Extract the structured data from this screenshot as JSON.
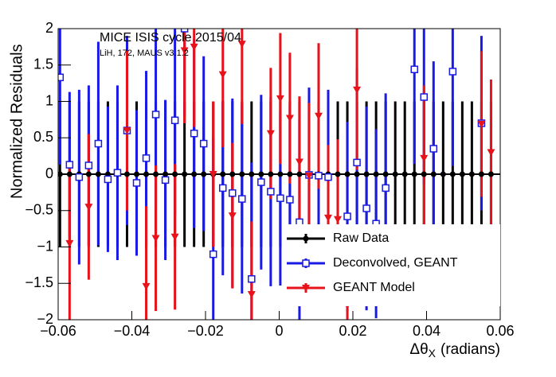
{
  "chart_data": {
    "type": "errorbar",
    "title": "MICE ISIS cycle 2015/04",
    "subtitle": "LiH, 172, MAUS v3.1.2",
    "y_label": "Normalized Residuals",
    "x_label": {
      "symbol": "Δθ",
      "subscript": "X",
      "unit": "(radians)"
    },
    "xlim": [
      -0.06,
      0.06
    ],
    "ylim": [
      -2,
      2
    ],
    "xticks": [
      {
        "value": -0.06,
        "label": "−0.06"
      },
      {
        "value": -0.04,
        "label": "−0.04"
      },
      {
        "value": -0.02,
        "label": "−0.02"
      },
      0,
      0.02,
      0.04,
      0.06
    ],
    "yticks": [
      {
        "value": -2,
        "label": "−2"
      },
      {
        "value": -1.5,
        "label": "−1.5"
      },
      {
        "value": -1,
        "label": "−1"
      },
      {
        "value": -0.5,
        "label": "−0.5"
      },
      0,
      0.5,
      1,
      1.5,
      2
    ],
    "legend": "lower right",
    "x": [
      -0.0595,
      -0.0569,
      -0.0543,
      -0.0517,
      -0.0491,
      -0.0465,
      -0.0439,
      -0.0413,
      -0.0387,
      -0.0361,
      -0.0335,
      -0.0309,
      -0.0283,
      -0.0257,
      -0.0231,
      -0.0205,
      -0.0179,
      -0.0153,
      -0.0127,
      -0.0101,
      -0.0075,
      -0.0049,
      -0.0023,
      0.0003,
      0.0029,
      0.0055,
      0.0081,
      0.0107,
      0.0133,
      0.0159,
      0.0185,
      0.0211,
      0.0237,
      0.0263,
      0.0289,
      0.0315,
      0.0341,
      0.0367,
      0.0393,
      0.0419,
      0.0445,
      0.0471,
      0.0497,
      0.0523,
      0.0549,
      0.0575
    ],
    "series": [
      {
        "name": "Raw Data",
        "color": "#000000",
        "marker": "circle",
        "values": [
          0,
          0,
          0,
          0,
          0,
          0,
          0,
          0,
          0,
          0,
          0,
          0,
          0,
          0,
          0,
          0,
          0,
          0,
          0,
          0,
          0,
          0,
          0,
          0,
          0,
          0,
          0,
          0,
          0,
          0,
          0,
          0,
          0,
          0,
          0,
          0,
          0,
          0,
          0,
          0,
          0,
          0,
          0,
          0,
          0,
          0
        ],
        "errors": [
          1,
          1,
          1,
          1,
          1,
          1,
          1,
          1,
          1,
          1,
          1,
          1,
          1,
          1,
          1,
          1,
          1,
          1,
          1,
          1,
          1,
          1,
          1,
          1,
          1,
          1,
          1,
          1,
          1,
          1,
          1,
          1,
          1,
          1,
          1,
          1,
          1,
          1,
          1,
          1,
          1,
          1,
          1,
          1,
          1,
          1
        ]
      },
      {
        "name": "Deconvolved, GEANT",
        "color": "#1a1ae6",
        "marker": "open-square",
        "values": [
          1.33,
          0.13,
          -0.04,
          0.12,
          0.42,
          -0.07,
          0.02,
          0.6,
          -0.12,
          0.22,
          0.82,
          -0.08,
          0.74,
          2.0,
          0.56,
          0.42,
          -1.1,
          -0.19,
          -0.26,
          -0.34,
          -1.44,
          -0.11,
          -0.24,
          -0.33,
          -0.35,
          -0.66,
          -0.01,
          -0.02,
          -0.04,
          null,
          -0.58,
          0.16,
          -0.47,
          -0.68,
          -0.19,
          null,
          null,
          1.44,
          1.06,
          0.35,
          null,
          1.41,
          null,
          null,
          0.7,
          null
        ],
        "errors": [
          1.2,
          1.0,
          1.2,
          1.1,
          1.4,
          1.0,
          1.2,
          1.3,
          1.0,
          1.2,
          1.3,
          1.1,
          1.3,
          1.2,
          1.3,
          1.2,
          1.6,
          1.2,
          1.3,
          1.3,
          1.6,
          1.2,
          1.3,
          1.2,
          1.3,
          1.4,
          1.2,
          1.3,
          1.2,
          null,
          1.3,
          1.3,
          1.4,
          1.3,
          1.3,
          null,
          null,
          1.3,
          1.2,
          1.2,
          null,
          1.3,
          null,
          null,
          1.2,
          null
        ]
      },
      {
        "name": "GEANT Model",
        "color": "#e8121a",
        "marker": "down-triangle",
        "values": [
          null,
          -0.95,
          null,
          -0.45,
          null,
          null,
          null,
          0.6,
          null,
          -1.54,
          -0.88,
          null,
          -0.86,
          1.7,
          1.75,
          null,
          0.0,
          1.37,
          -0.57,
          1.79,
          -1.65,
          null,
          0.56,
          1.04,
          0.77,
          0.17,
          -0.02,
          0.8,
          -0.6,
          -0.62,
          -1.8,
          1.16,
          null,
          null,
          null,
          null,
          null,
          null,
          0.22,
          null,
          null,
          null,
          null,
          null,
          0.69,
          0.3
        ],
        "errors": [
          null,
          1.1,
          null,
          1.0,
          null,
          null,
          null,
          1.1,
          null,
          1.1,
          1.0,
          null,
          1.0,
          1.0,
          1.1,
          null,
          1.0,
          1.0,
          1.0,
          1.1,
          1.0,
          null,
          0.9,
          0.9,
          0.9,
          0.9,
          1.0,
          1.0,
          1.0,
          1.1,
          1.0,
          1.1,
          null,
          null,
          null,
          null,
          null,
          null,
          1.0,
          null,
          null,
          null,
          null,
          null,
          1.0,
          1.0
        ]
      }
    ]
  }
}
